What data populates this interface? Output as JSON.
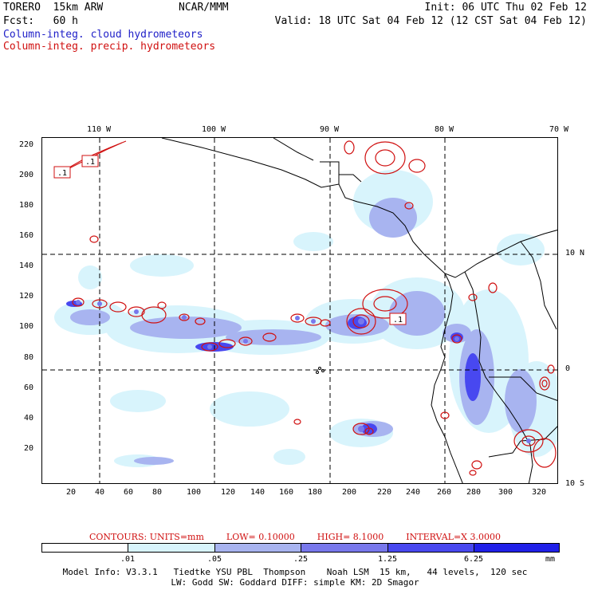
{
  "header": {
    "model": "TORERO  15km ARW",
    "org": "NCAR/MMM",
    "init": "Init: 06 UTC Thu 02 Feb 12",
    "fcst": "Fcst:   60 h",
    "valid": "Valid: 18 UTC Sat 04 Feb 12 (12 CST Sat 04 Feb 12)",
    "field1": "Column-integ. cloud hydrometeors",
    "field2": "Column-integ. precip. hydrometeors",
    "field1_color": "#2020c8",
    "field2_color": "#d01010"
  },
  "map": {
    "lon_labels": [
      "110 W",
      "100 W",
      "90 W",
      "80 W",
      "70 W"
    ],
    "lat_labels": [
      "10 N",
      "0",
      "10 S"
    ],
    "x_ticks": [
      "20",
      "40",
      "60",
      "80",
      "100",
      "120",
      "140",
      "160",
      "180",
      "200",
      "220",
      "240",
      "260",
      "280",
      "300",
      "320"
    ],
    "y_ticks": [
      "220",
      "200",
      "180",
      "160",
      "140",
      "120",
      "100",
      "80",
      "60",
      "40",
      "20"
    ],
    "contour_labels": [
      ".1",
      ".1",
      ".1"
    ]
  },
  "contours": {
    "units": "CONTOURS:  UNITS=mm",
    "low": "LOW= 0.10000",
    "high": "HIGH=  8.1000",
    "interval": "INTERVAL=X  3.0000"
  },
  "colorbar": {
    "colors": [
      "#ffffff",
      "#d8f4fc",
      "#a8b4f0",
      "#7878ec",
      "#4848f0",
      "#2020e8"
    ],
    "labels": [
      ".01",
      ".05",
      ".25",
      "1.25",
      "6.25"
    ],
    "units": "mm"
  },
  "footer": {
    "line1": "Model Info: V3.3.1   Tiedtke YSU PBL  Thompson    Noah LSM  15 km,   44 levels,  120 sec",
    "line2": "LW: Godd SW: Goddard DIFF: simple KM: 2D Smagor"
  }
}
